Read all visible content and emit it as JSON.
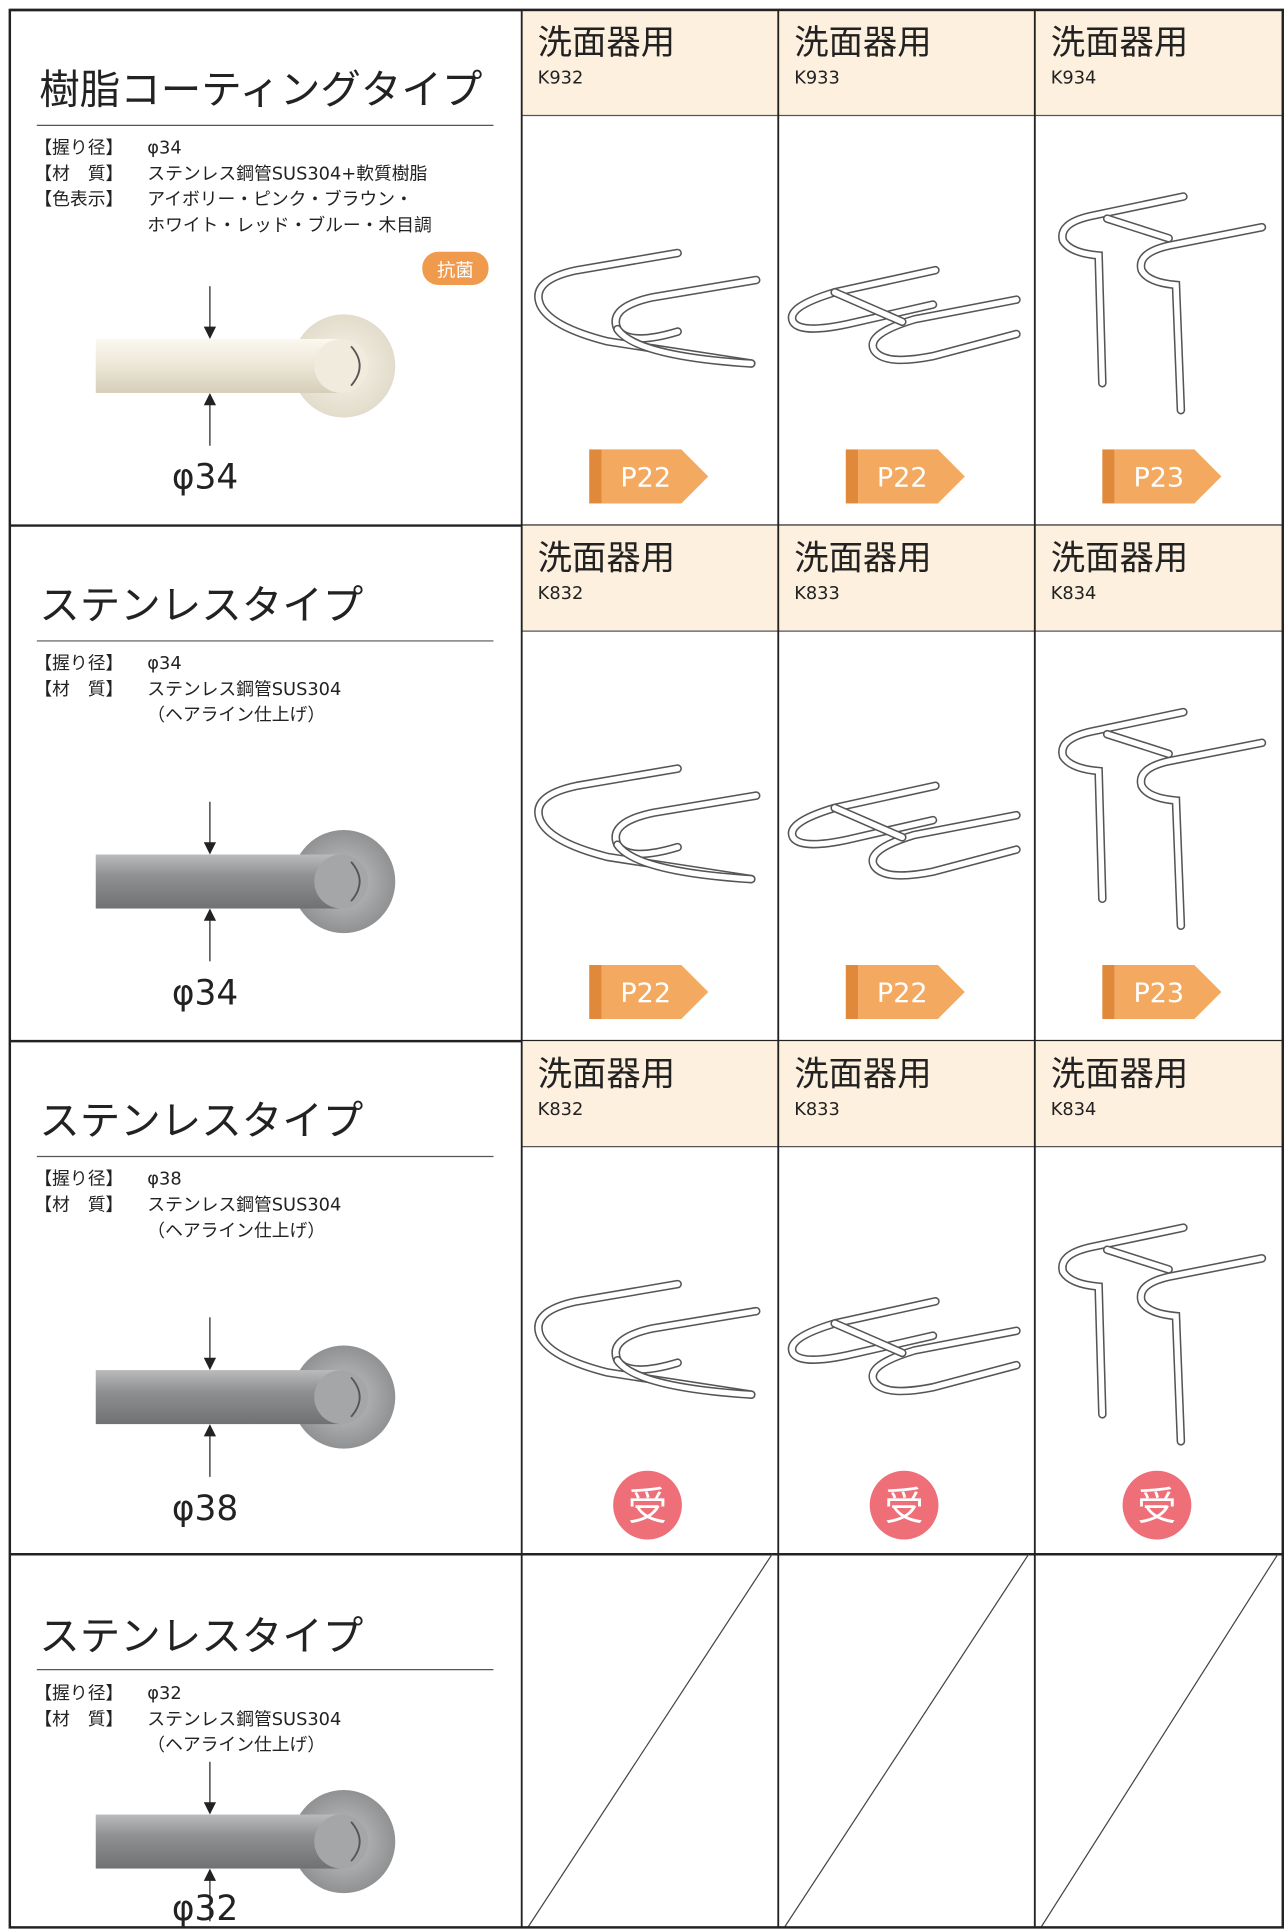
{
  "rows": [
    {
      "title": "樹脂コーティングタイプ",
      "specs": [
        {
          "label": "【握り径】",
          "lines": [
            "φ34"
          ]
        },
        {
          "label": "【材　質】",
          "lines": [
            "ステンレス鋼管SUS304+軟質樹脂"
          ]
        },
        {
          "label": "【色表示】",
          "lines": [
            "アイボリー・ピンク・ブラウン・",
            "ホワイト・レッド・ブルー・木目調"
          ]
        }
      ],
      "badge": "抗菌",
      "diameter": "φ34",
      "products": [
        {
          "category": "洗面器用",
          "code": "K932",
          "page": "P22"
        },
        {
          "category": "洗面器用",
          "code": "K933",
          "page": "P22"
        },
        {
          "category": "洗面器用",
          "code": "K934",
          "page": "P23"
        }
      ]
    },
    {
      "title": "ステンレスタイプ",
      "specs": [
        {
          "label": "【握り径】",
          "lines": [
            "φ34"
          ]
        },
        {
          "label": "【材　質】",
          "lines": [
            "ステンレス鋼管SUS304",
            "（ヘアライン仕上げ）"
          ]
        }
      ],
      "diameter": "φ34",
      "products": [
        {
          "category": "洗面器用",
          "code": "K832",
          "page": "P22"
        },
        {
          "category": "洗面器用",
          "code": "K833",
          "page": "P22"
        },
        {
          "category": "洗面器用",
          "code": "K834",
          "page": "P23"
        }
      ]
    },
    {
      "title": "ステンレスタイプ",
      "specs": [
        {
          "label": "【握り径】",
          "lines": [
            "φ38"
          ]
        },
        {
          "label": "【材　質】",
          "lines": [
            "ステンレス鋼管SUS304",
            "（ヘアライン仕上げ）"
          ]
        }
      ],
      "diameter": "φ38",
      "products": [
        {
          "category": "洗面器用",
          "code": "K832",
          "mark": "受"
        },
        {
          "category": "洗面器用",
          "code": "K833",
          "mark": "受"
        },
        {
          "category": "洗面器用",
          "code": "K834",
          "mark": "受"
        }
      ]
    },
    {
      "title": "ステンレスタイプ",
      "specs": [
        {
          "label": "【握り径】",
          "lines": [
            "φ32"
          ]
        },
        {
          "label": "【材　質】",
          "lines": [
            "ステンレス鋼管SUS304",
            "（ヘアライン仕上げ）"
          ]
        }
      ],
      "diameter": "φ32",
      "products": []
    }
  ]
}
